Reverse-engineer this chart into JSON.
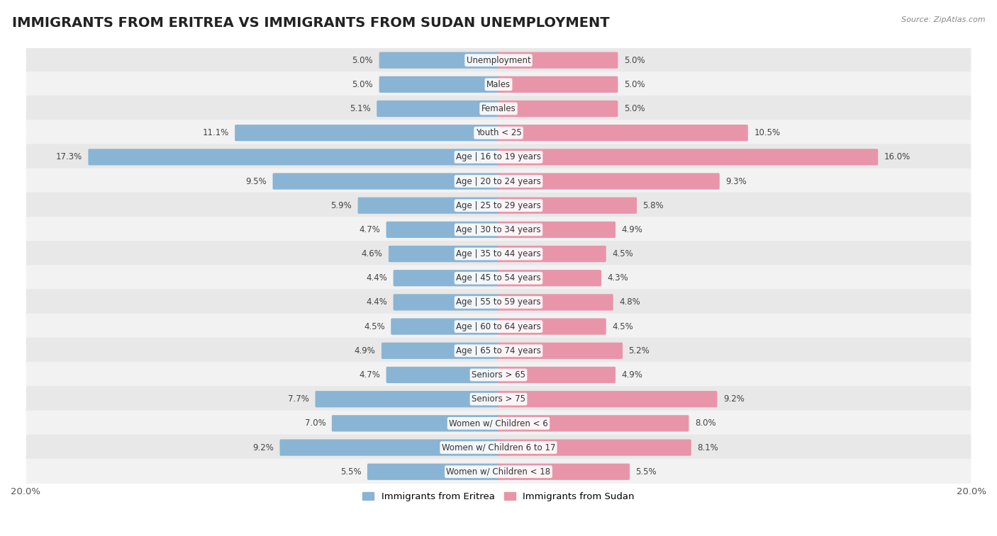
{
  "title": "IMMIGRANTS FROM ERITREA VS IMMIGRANTS FROM SUDAN UNEMPLOYMENT",
  "source": "Source: ZipAtlas.com",
  "categories": [
    "Unemployment",
    "Males",
    "Females",
    "Youth < 25",
    "Age | 16 to 19 years",
    "Age | 20 to 24 years",
    "Age | 25 to 29 years",
    "Age | 30 to 34 years",
    "Age | 35 to 44 years",
    "Age | 45 to 54 years",
    "Age | 55 to 59 years",
    "Age | 60 to 64 years",
    "Age | 65 to 74 years",
    "Seniors > 65",
    "Seniors > 75",
    "Women w/ Children < 6",
    "Women w/ Children 6 to 17",
    "Women w/ Children < 18"
  ],
  "eritrea_values": [
    5.0,
    5.0,
    5.1,
    11.1,
    17.3,
    9.5,
    5.9,
    4.7,
    4.6,
    4.4,
    4.4,
    4.5,
    4.9,
    4.7,
    7.7,
    7.0,
    9.2,
    5.5
  ],
  "sudan_values": [
    5.0,
    5.0,
    5.0,
    10.5,
    16.0,
    9.3,
    5.8,
    4.9,
    4.5,
    4.3,
    4.8,
    4.5,
    5.2,
    4.9,
    9.2,
    8.0,
    8.1,
    5.5
  ],
  "eritrea_color": "#8ab4d4",
  "sudan_color": "#e895aa",
  "axis_max": 20.0,
  "bar_height": 0.58,
  "row_bg_colors": [
    "#e8e8e8",
    "#f2f2f2"
  ],
  "label_color": "#444444",
  "title_fontsize": 14,
  "tick_fontsize": 9.5,
  "category_fontsize": 8.5,
  "value_fontsize": 8.5,
  "legend_labels": [
    "Immigrants from Eritrea",
    "Immigrants from Sudan"
  ]
}
